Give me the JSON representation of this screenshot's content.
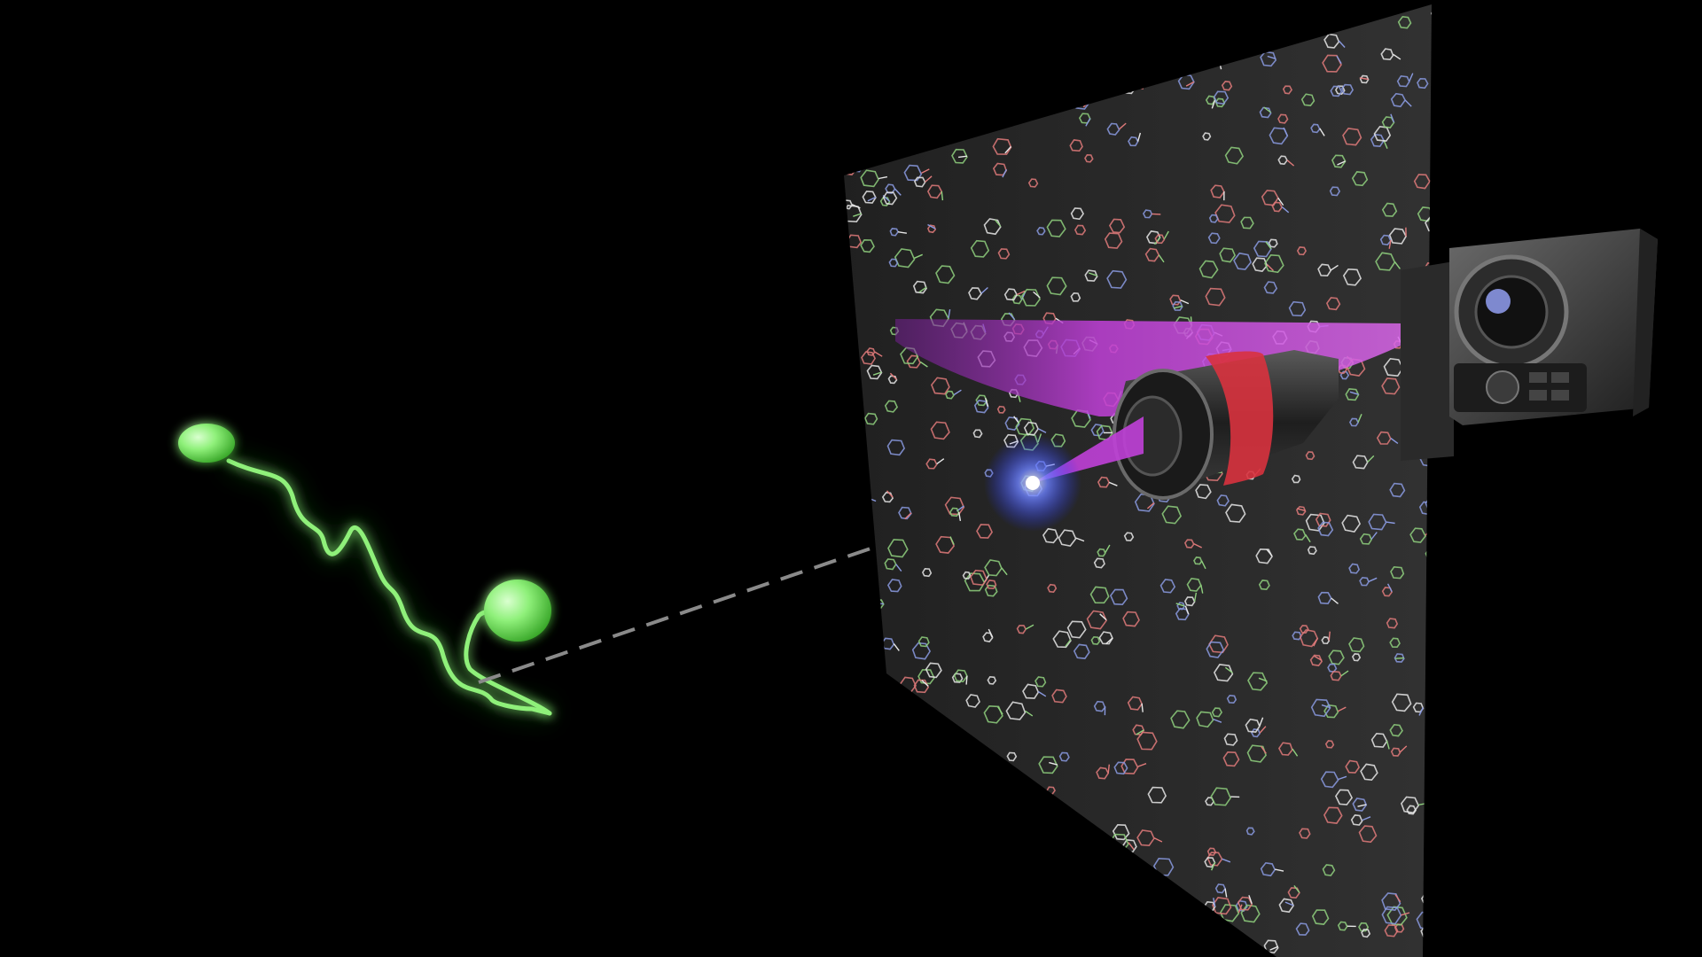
{
  "scene": {
    "background_color": "#000000",
    "polymer_color": "#8ff07a",
    "polymer_glow_color": "#35d62a",
    "link_color": "#8a8a8a",
    "panel_color": "#2d2d2d",
    "laser_color": "#c040d8",
    "blue_light_color": "#3a55ff",
    "objective_color": "#303030",
    "objective_band_color": "#d8323e",
    "camera_color": "#4a4a4a",
    "molecule_colors": [
      "#e8e8e8",
      "#e07a7a",
      "#8fd07e",
      "#8a9ae0"
    ]
  }
}
